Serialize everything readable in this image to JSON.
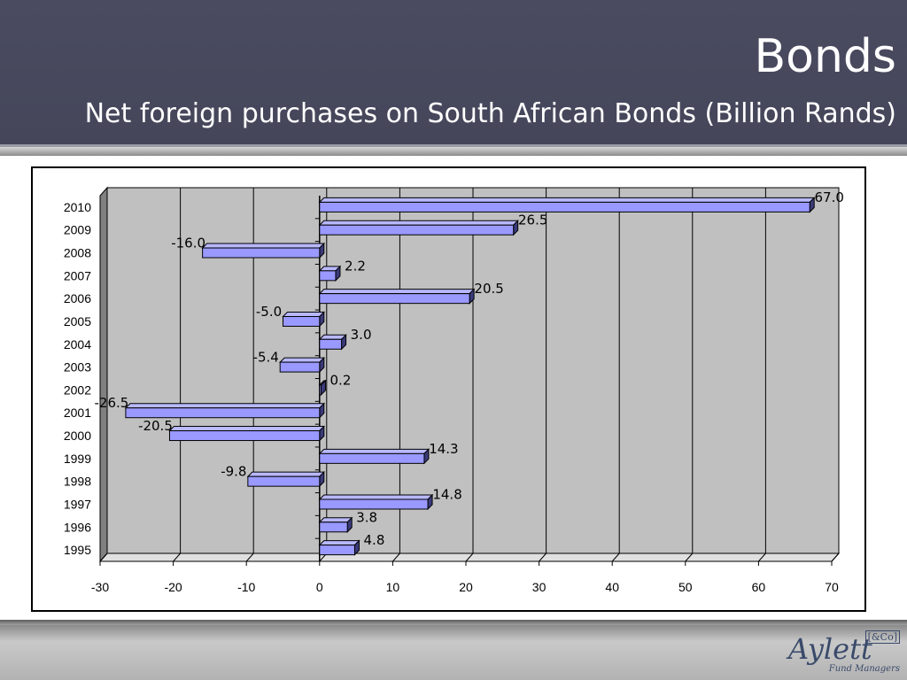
{
  "slide": {
    "title": "Bonds",
    "subtitle": "Net foreign purchases on South African Bonds (Billion Rands)"
  },
  "logo": {
    "name": "Aylett",
    "badge": "[&Co]",
    "tagline": "Fund Managers"
  },
  "colors": {
    "header_bg": "#484a5e",
    "bar_fill": "#9999ff",
    "plot_bg": "#c0c0c0"
  },
  "chart_data": {
    "type": "bar",
    "orientation": "horizontal",
    "style": "3d",
    "categories": [
      "1995",
      "1996",
      "1997",
      "1998",
      "1999",
      "2000",
      "2001",
      "2002",
      "2003",
      "2004",
      "2005",
      "2006",
      "2007",
      "2008",
      "2009",
      "2010"
    ],
    "values": [
      4.8,
      3.8,
      14.8,
      -9.8,
      14.3,
      -20.5,
      -26.5,
      0.2,
      -5.4,
      3.0,
      -5.0,
      20.5,
      2.2,
      -16.0,
      26.5,
      67.0
    ],
    "value_labels": [
      "4.8",
      "3.8",
      "14.8",
      "-9.8",
      "14.3",
      "-20.5",
      "-26.5",
      "0.2",
      "-5.4",
      "3.0",
      "-5.0",
      "20.5",
      "2.2",
      "-16.0",
      "26.5",
      "67.0"
    ],
    "x_ticks": [
      "-30",
      "-20",
      "-10",
      "0",
      "10",
      "20",
      "30",
      "40",
      "50",
      "60",
      "70"
    ],
    "xlim": [
      -30,
      70
    ],
    "grid": "vertical",
    "legend": "none"
  }
}
